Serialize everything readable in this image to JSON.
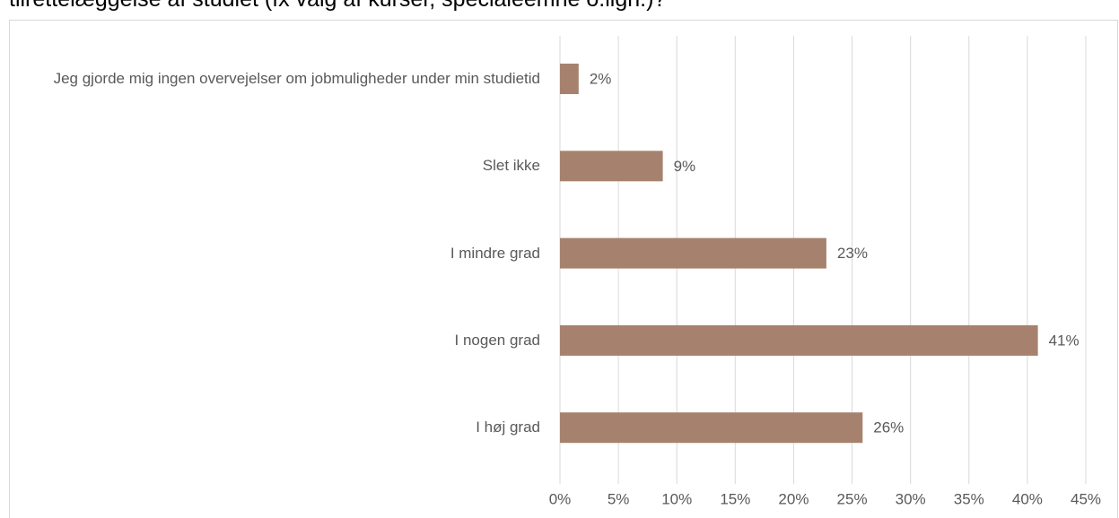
{
  "chart_data": {
    "type": "hbar",
    "title": "tilrettelæggelse af studiet (fx valg af kurser, specialeemne o.lign.)?",
    "categories": [
      "Jeg gjorde mig ingen overvejelser om jobmuligheder under min studietid",
      "Slet ikke",
      "I mindre grad",
      "I nogen grad",
      "I høj grad"
    ],
    "values": [
      1.6,
      8.8,
      22.8,
      40.9,
      25.9
    ],
    "value_labels": [
      "2%",
      "9%",
      "23%",
      "41%",
      "26%"
    ],
    "color": "#a6826e",
    "xlim": [
      0,
      45
    ],
    "xticks": [
      {
        "value": 0,
        "label": "0%"
      },
      {
        "value": 5,
        "label": "5%"
      },
      {
        "value": 10,
        "label": "10%"
      },
      {
        "value": 15,
        "label": "15%"
      },
      {
        "value": 20,
        "label": "20%"
      },
      {
        "value": 25,
        "label": "25%"
      },
      {
        "value": 30,
        "label": "30%"
      },
      {
        "value": 35,
        "label": "35%"
      },
      {
        "value": 40,
        "label": "40%"
      },
      {
        "value": 45,
        "label": "45%"
      }
    ],
    "grid": true
  }
}
